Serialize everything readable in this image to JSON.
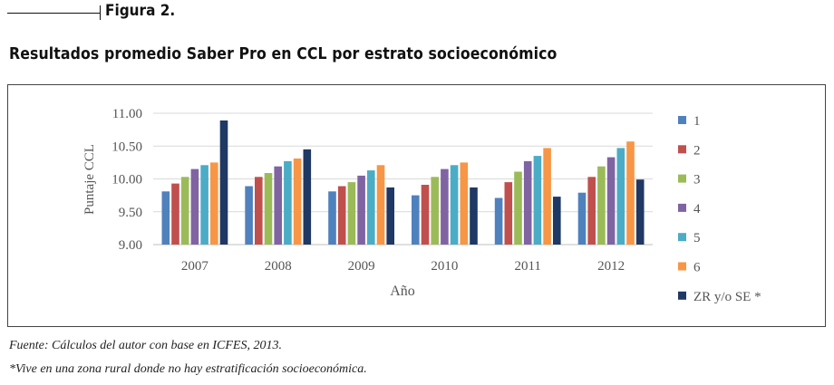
{
  "figure_label": "Figura 2.",
  "figure_title": "Resultados promedio Saber Pro en CCL por estrato socioeconómico",
  "notes": {
    "source": "Fuente: Cálculos del autor con base en ICFES, 2013.",
    "footnote": "*Vive en una zona rural donde no hay estratificación socioeconómica."
  },
  "chart_data": {
    "type": "bar",
    "title": "",
    "xlabel": "Año",
    "ylabel": "Puntaje CCL",
    "ylim": [
      9.0,
      11.0
    ],
    "yticks": [
      "9.00",
      "9.50",
      "10.00",
      "10.50",
      "11.00"
    ],
    "grid": true,
    "legend_position": "right",
    "categories": [
      "2007",
      "2008",
      "2009",
      "2010",
      "2011",
      "2012"
    ],
    "series": [
      {
        "name": "1",
        "color": "#4f81bd",
        "values": [
          9.81,
          9.89,
          9.81,
          9.75,
          9.71,
          9.79
        ]
      },
      {
        "name": "2",
        "color": "#c0504d",
        "values": [
          9.93,
          10.03,
          9.89,
          9.91,
          9.95,
          10.03
        ]
      },
      {
        "name": "3",
        "color": "#9bbb59",
        "values": [
          10.03,
          10.09,
          9.95,
          10.03,
          10.11,
          10.19
        ]
      },
      {
        "name": "4",
        "color": "#8064a2",
        "values": [
          10.15,
          10.19,
          10.05,
          10.15,
          10.27,
          10.33
        ]
      },
      {
        "name": "5",
        "color": "#4bacc6",
        "values": [
          10.21,
          10.27,
          10.13,
          10.21,
          10.35,
          10.47
        ]
      },
      {
        "name": "6",
        "color": "#f79646",
        "values": [
          10.25,
          10.31,
          10.21,
          10.25,
          10.47,
          10.57
        ]
      },
      {
        "name": "ZR y/o SE *",
        "color": "#1f3864",
        "values": [
          10.89,
          10.45,
          9.87,
          9.87,
          9.73,
          9.99
        ]
      }
    ]
  }
}
